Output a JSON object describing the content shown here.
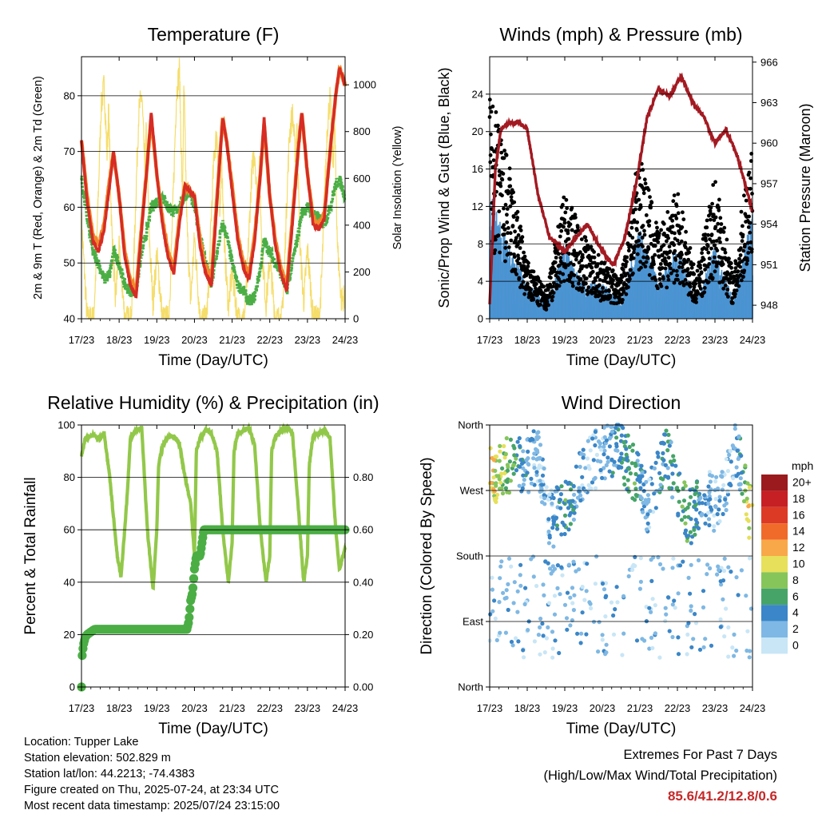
{
  "colors": {
    "temp2m": "#d62c24",
    "temp9m": "#f08a2c",
    "dewpoint": "#4bae45",
    "solar": "#f5dd6a",
    "wind": "#4c94d2",
    "gust": "#000000",
    "pressure": "#a31a22",
    "rh": "#92c84a",
    "precip": "#4bae45"
  },
  "x_ticks": [
    "17/23",
    "18/23",
    "19/23",
    "20/23",
    "21/23",
    "22/23",
    "23/23",
    "24/23"
  ],
  "chart_data": [
    {
      "id": "temperature",
      "type": "line",
      "title": "Temperature (F)",
      "xlabel": "Time (Day/UTC)",
      "ylabel": "2m & 9m T (Red, Orange) & 2m Td (Green)",
      "y2label": "Solar Insolation (Yellow)",
      "xlim": [
        0,
        7
      ],
      "ylim": [
        40,
        87
      ],
      "y2lim": [
        0,
        1120
      ],
      "yticks": [
        40,
        50,
        60,
        70,
        80
      ],
      "y2ticks": [
        0,
        200,
        400,
        600,
        800,
        1000
      ],
      "series": [
        {
          "key": "solar",
          "axis": "y2",
          "x": [
            0,
            0.15,
            0.25,
            0.32,
            0.38,
            0.45,
            0.52,
            0.6,
            0.68,
            0.72,
            0.8,
            0.9,
            1.0,
            1.15,
            1.25,
            1.32,
            1.38,
            1.45,
            1.52,
            1.6,
            1.68,
            1.72,
            1.8,
            1.9,
            2.0,
            2.15,
            2.25,
            2.32,
            2.38,
            2.45,
            2.52,
            2.6,
            2.68,
            2.72,
            2.8,
            2.9,
            3.0,
            3.15,
            3.25,
            3.32,
            3.38,
            3.45,
            3.52,
            3.6,
            3.68,
            3.72,
            3.8,
            3.9,
            4.0,
            4.15,
            4.25,
            4.32,
            4.38,
            4.45,
            4.52,
            4.6,
            4.68,
            4.72,
            4.8,
            4.9,
            5.0,
            5.15,
            5.25,
            5.32,
            5.38,
            5.45,
            5.52,
            5.6,
            5.68,
            5.72,
            5.8,
            5.9,
            6.0,
            6.15,
            6.25,
            6.32,
            6.38,
            6.45,
            6.52,
            6.6,
            6.68,
            6.72,
            6.8,
            6.9,
            7.0
          ],
          "y": [
            420,
            0,
            0,
            0,
            200,
            550,
            900,
            1000,
            700,
            900,
            400,
            80,
            300,
            0,
            0,
            0,
            200,
            550,
            880,
            960,
            650,
            800,
            350,
            60,
            280,
            0,
            0,
            0,
            250,
            600,
            950,
            1070,
            500,
            1000,
            400,
            70,
            350,
            0,
            0,
            0,
            150,
            450,
            700,
            800,
            400,
            700,
            300,
            50,
            200,
            0,
            0,
            0,
            120,
            380,
            620,
            720,
            450,
            650,
            280,
            60,
            250,
            0,
            0,
            0,
            180,
            500,
            780,
            880,
            700,
            820,
            320,
            70,
            300,
            0,
            0,
            0,
            180,
            500,
            800,
            950,
            650,
            850,
            300,
            80,
            100
          ]
        },
        {
          "key": "temp9m",
          "axis": "y",
          "x": [
            0,
            0.15,
            0.3,
            0.45,
            0.6,
            0.75,
            0.85,
            1.0,
            1.15,
            1.3,
            1.45,
            1.6,
            1.75,
            1.85,
            2.0,
            2.15,
            2.3,
            2.45,
            2.6,
            2.75,
            2.85,
            3.0,
            3.15,
            3.3,
            3.45,
            3.6,
            3.75,
            3.85,
            4.0,
            4.15,
            4.3,
            4.45,
            4.6,
            4.75,
            4.85,
            5.0,
            5.15,
            5.3,
            5.45,
            5.6,
            5.75,
            5.85,
            6.0,
            6.15,
            6.3,
            6.45,
            6.6,
            6.75,
            6.85,
            7.0
          ],
          "y": [
            72,
            62,
            55,
            53,
            57,
            65,
            70,
            62,
            52,
            47,
            45,
            57,
            68,
            76,
            66,
            58,
            52,
            49,
            58,
            64,
            63,
            62,
            54,
            49,
            47,
            62,
            76,
            72,
            64,
            55,
            50,
            48,
            55,
            66,
            75,
            62,
            54,
            49,
            46,
            58,
            70,
            77,
            66,
            58,
            57,
            59,
            70,
            80,
            85,
            82
          ]
        },
        {
          "key": "temp2m",
          "axis": "y",
          "x": [
            0,
            0.15,
            0.3,
            0.45,
            0.6,
            0.75,
            0.85,
            1.0,
            1.15,
            1.3,
            1.45,
            1.6,
            1.75,
            1.85,
            2.0,
            2.15,
            2.3,
            2.45,
            2.6,
            2.75,
            2.85,
            3.0,
            3.15,
            3.3,
            3.45,
            3.6,
            3.75,
            3.85,
            4.0,
            4.15,
            4.3,
            4.45,
            4.6,
            4.75,
            4.85,
            5.0,
            5.15,
            5.3,
            5.45,
            5.6,
            5.75,
            5.85,
            6.0,
            6.15,
            6.3,
            6.45,
            6.6,
            6.75,
            6.85,
            7.0
          ],
          "y": [
            72,
            61,
            54,
            52,
            56,
            64,
            70,
            62,
            51,
            46,
            44,
            56,
            68,
            77,
            66,
            57,
            51,
            48,
            57,
            64,
            63,
            62,
            53,
            48,
            46,
            61,
            76,
            72,
            63,
            54,
            49,
            47,
            54,
            66,
            76,
            62,
            53,
            48,
            45,
            57,
            70,
            77,
            66,
            57,
            56,
            58,
            70,
            80,
            85,
            82
          ]
        },
        {
          "key": "dewpoint",
          "axis": "y",
          "x": [
            0,
            0.15,
            0.3,
            0.45,
            0.6,
            0.75,
            0.85,
            1.0,
            1.15,
            1.3,
            1.45,
            1.6,
            1.75,
            1.85,
            2.0,
            2.15,
            2.3,
            2.45,
            2.6,
            2.75,
            2.85,
            3.0,
            3.15,
            3.3,
            3.45,
            3.6,
            3.75,
            3.85,
            4.0,
            4.15,
            4.3,
            4.45,
            4.6,
            4.75,
            4.85,
            5.0,
            5.15,
            5.3,
            5.45,
            5.6,
            5.75,
            5.85,
            6.0,
            6.15,
            6.3,
            6.45,
            6.6,
            6.75,
            6.85,
            7.0
          ],
          "y": [
            65,
            58,
            52,
            50,
            47,
            48,
            52,
            50,
            46,
            45,
            45,
            52,
            56,
            60,
            61,
            62,
            60,
            59,
            60,
            62,
            63,
            60,
            55,
            50,
            46,
            52,
            57,
            55,
            50,
            46,
            45,
            43,
            44,
            49,
            54,
            52,
            50,
            48,
            45,
            50,
            55,
            59,
            60,
            59,
            58,
            57,
            60,
            64,
            65,
            62
          ]
        }
      ]
    },
    {
      "id": "winds",
      "type": "scatter",
      "title": "Winds (mph) & Pressure (mb)",
      "xlabel": "Time (Day/UTC)",
      "ylabel": "Sonic/Prop Wind & Gust (Blue, Black)",
      "y2label": "Station Pressure (Maroon)",
      "xlim": [
        0,
        7
      ],
      "ylim": [
        0,
        28
      ],
      "y2lim": [
        947,
        966.4
      ],
      "yticks": [
        0,
        4,
        8,
        12,
        16,
        20,
        24
      ],
      "y2ticks": [
        948,
        951,
        954,
        957,
        960,
        963,
        966
      ],
      "series": [
        {
          "key": "gust_center",
          "x": [
            0,
            0.5,
            1,
            1.5,
            2,
            2.5,
            3,
            3.5,
            4,
            4.5,
            5,
            5.5,
            6,
            6.5,
            7
          ],
          "y": [
            16,
            11,
            4,
            2,
            9,
            6,
            4,
            3,
            12,
            6,
            9,
            3,
            10,
            3,
            14
          ]
        },
        {
          "key": "wind_center",
          "x": [
            0,
            0.5,
            1,
            1.5,
            2,
            2.5,
            3,
            3.5,
            4,
            4.5,
            5,
            5.5,
            6,
            6.5,
            7
          ],
          "y": [
            7,
            4,
            2,
            1,
            4,
            2,
            2,
            1,
            5,
            2,
            4,
            1,
            4,
            1,
            6
          ]
        },
        {
          "key": "pressure",
          "axis": "y2",
          "x": [
            0,
            0.15,
            0.3,
            0.5,
            0.8,
            1.0,
            1.3,
            1.6,
            2.0,
            2.3,
            2.6,
            2.9,
            3.15,
            3.3,
            3.6,
            3.9,
            4.2,
            4.5,
            4.8,
            5.1,
            5.4,
            5.7,
            6.0,
            6.3,
            6.6,
            6.9,
            7.0
          ],
          "y": [
            948,
            958,
            961,
            961.5,
            961.5,
            961,
            956,
            953,
            952,
            953,
            954,
            952.5,
            951.4,
            951,
            953,
            957,
            962,
            964,
            963.5,
            965,
            963,
            962,
            960,
            961,
            959,
            956,
            955
          ]
        }
      ]
    },
    {
      "id": "humidity",
      "type": "line",
      "title": "Relative Humidity (%) & Precipitation (in)",
      "xlabel": "Time (Day/UTC)",
      "ylabel": "Percent & Total Rainfall",
      "xlim": [
        0,
        7
      ],
      "ylim": [
        0,
        100
      ],
      "y2lim": [
        0,
        1
      ],
      "yticks": [
        0,
        20,
        40,
        60,
        80,
        100
      ],
      "y2ticks": [
        "0.00",
        "0.20",
        "0.40",
        "0.60",
        "0.80"
      ],
      "series": [
        {
          "key": "rh",
          "x": [
            0,
            0.1,
            0.3,
            0.5,
            0.6,
            0.75,
            0.95,
            1.05,
            1.2,
            1.3,
            1.45,
            1.6,
            1.75,
            1.9,
            2.0,
            2.05,
            2.15,
            2.3,
            2.45,
            2.6,
            2.75,
            2.9,
            3.0,
            3.05,
            3.15,
            3.3,
            3.45,
            3.6,
            3.75,
            3.9,
            4.0,
            4.05,
            4.15,
            4.3,
            4.45,
            4.6,
            4.75,
            4.9,
            5.0,
            5.05,
            5.15,
            5.3,
            5.45,
            5.6,
            5.75,
            5.9,
            6.0,
            6.05,
            6.15,
            6.3,
            6.45,
            6.6,
            6.75,
            6.85,
            7.0
          ],
          "y": [
            88,
            95,
            96,
            95,
            97,
            80,
            50,
            42,
            70,
            95,
            98,
            99,
            60,
            37,
            60,
            85,
            92,
            95,
            96,
            93,
            80,
            70,
            50,
            90,
            95,
            98,
            97,
            90,
            60,
            40,
            55,
            90,
            97,
            98,
            99,
            92,
            60,
            40,
            50,
            90,
            96,
            98,
            99,
            97,
            70,
            40,
            50,
            85,
            96,
            97,
            98,
            95,
            60,
            45,
            53
          ]
        },
        {
          "key": "precip",
          "axis": "y2",
          "x": [
            0,
            0.02,
            0.05,
            0.1,
            0.15,
            0.25,
            0.35,
            0.5,
            1.0,
            1.5,
            2.0,
            2.5,
            2.8,
            2.85,
            2.9,
            2.95,
            3.0,
            3.05,
            3.15,
            3.2,
            3.25,
            3.3,
            4.0,
            5.0,
            6.0,
            7.0
          ],
          "y": [
            0,
            0.12,
            0.16,
            0.19,
            0.2,
            0.21,
            0.22,
            0.22,
            0.22,
            0.22,
            0.22,
            0.22,
            0.22,
            0.25,
            0.33,
            0.36,
            0.45,
            0.5,
            0.5,
            0.55,
            0.6,
            0.6,
            0.6,
            0.6,
            0.6,
            0.6
          ]
        }
      ]
    },
    {
      "id": "direction",
      "type": "scatter",
      "title": "Wind Direction",
      "xlabel": "Time (Day/UTC)",
      "ylabel": "Direction (Colored By Speed)",
      "xlim": [
        0,
        7
      ],
      "ylim": [
        0,
        360
      ],
      "yticks": [
        "North",
        "East",
        "South",
        "West",
        "North"
      ],
      "legend_title": "mph",
      "legend": [
        "20+",
        "18",
        "16",
        "14",
        "12",
        "10",
        "8",
        "6",
        "4",
        "2",
        "0"
      ],
      "legend_colors": [
        "#9a1a1e",
        "#c62024",
        "#dd3a26",
        "#f06a2a",
        "#f8a848",
        "#e6e05a",
        "#86c55a",
        "#46a468",
        "#3a86c8",
        "#7fb8e4",
        "#c8e6f6"
      ],
      "series": [
        {
          "key": "clusters",
          "x": [
            0.1,
            0.6,
            0.9,
            1.3,
            1.6,
            2.0,
            2.5,
            3.0,
            3.4,
            3.8,
            4.2,
            4.7,
            5.3,
            5.8,
            6.1,
            6.6,
            6.9
          ],
          "y": [
            290,
            310,
            300,
            320,
            230,
            240,
            300,
            320,
            330,
            300,
            250,
            320,
            230,
            260,
            250,
            330,
            240
          ],
          "speed": [
            10,
            6,
            4,
            2,
            2,
            6,
            2,
            2,
            4,
            6,
            2,
            4,
            6,
            2,
            2,
            2,
            10
          ]
        }
      ]
    }
  ],
  "station": {
    "location": "Location: Tupper Lake",
    "elevation": "Station elevation: 502.829 m",
    "latlon": "Station lat/lon: 44.2213; -74.4383",
    "created": "Figure created on Thu, 2025-07-24, at 23:34 UTC",
    "recent": "Most recent data timestamp: 2025/07/24 23:15:00"
  },
  "extremes": {
    "title": "Extremes For Past 7 Days",
    "subtitle": "(High/Low/Max Wind/Total Precipitation)",
    "values": "85.6/41.2/12.8/0.6"
  }
}
